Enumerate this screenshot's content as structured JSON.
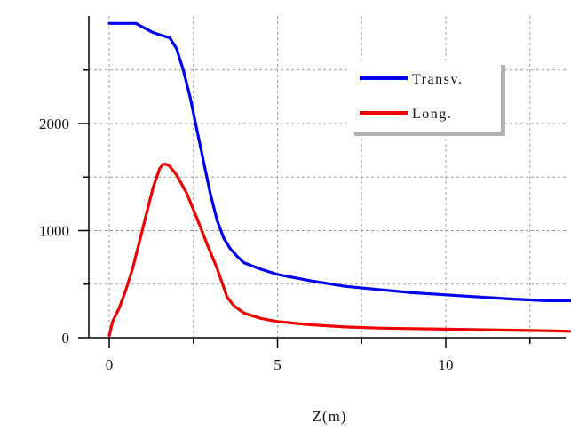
{
  "chart_data": {
    "type": "line",
    "title": "",
    "xlabel": "Z(m)",
    "ylabel": "",
    "xlim": [
      -0.5,
      13.8
    ],
    "ylim": [
      -100,
      3000
    ],
    "xticks": [
      0,
      5,
      10
    ],
    "xtick_labels": [
      "0",
      "5",
      "10"
    ],
    "xminor_ticks": [
      2.5,
      7.5,
      12.5
    ],
    "yticks": [
      0,
      1000,
      2000
    ],
    "ytick_labels": [
      "0",
      "1000",
      "2000"
    ],
    "yminor_ticks": [
      500,
      1500,
      2500
    ],
    "grid": true,
    "legend_position": "top-right",
    "colors": {
      "Transv.": "#0000ee",
      "Long.": "#ee0000"
    },
    "series": [
      {
        "name": "Transv.",
        "x": [
          0,
          0.8,
          1.0,
          1.3,
          1.5,
          1.8,
          2.0,
          2.2,
          2.4,
          2.6,
          2.8,
          3.0,
          3.2,
          3.4,
          3.6,
          3.8,
          4.0,
          4.5,
          5.0,
          6.0,
          7.0,
          8.0,
          9.0,
          10.0,
          11.0,
          12.0,
          13.0,
          13.7
        ],
        "y": [
          2935,
          2935,
          2900,
          2850,
          2830,
          2800,
          2700,
          2500,
          2250,
          1950,
          1650,
          1350,
          1100,
          930,
          830,
          760,
          700,
          640,
          590,
          530,
          480,
          450,
          420,
          400,
          380,
          360,
          345,
          345
        ]
      },
      {
        "name": "Long.",
        "x": [
          0,
          0.1,
          0.3,
          0.5,
          0.7,
          0.9,
          1.1,
          1.3,
          1.5,
          1.6,
          1.7,
          1.8,
          2.0,
          2.3,
          2.6,
          2.9,
          3.2,
          3.5,
          3.7,
          4.0,
          4.5,
          5.0,
          6.0,
          7.0,
          8.0,
          9.0,
          10.0,
          11.0,
          12.0,
          13.0,
          13.7
        ],
        "y": [
          20,
          150,
          280,
          450,
          650,
          900,
          1150,
          1400,
          1580,
          1620,
          1620,
          1600,
          1520,
          1350,
          1120,
          880,
          650,
          380,
          300,
          230,
          180,
          150,
          120,
          100,
          90,
          85,
          80,
          75,
          70,
          65,
          60
        ]
      }
    ]
  }
}
